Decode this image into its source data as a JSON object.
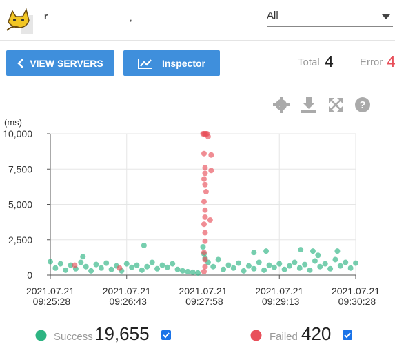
{
  "header": {
    "app_name": "r",
    "server_suffix": ",",
    "filter": "All"
  },
  "toolbar": {
    "buttons": [
      "VIEW SERVERS",
      "Inspector"
    ],
    "total_label": "Total",
    "total": 4,
    "error_label": "Error",
    "error": 4
  },
  "chart_data": {
    "type": "scatter",
    "y_label": "(ms)",
    "xlim": [
      "09:25:28",
      "09:30:28"
    ],
    "xticks": [
      {
        "value": "09:25:28",
        "label": "2021.07.21 09:25:28"
      },
      {
        "value": "09:26:43",
        "label": "2021.07.21 09:26:43"
      },
      {
        "value": "09:27:58",
        "label": "2021.07.21 09:27:58"
      },
      {
        "value": "09:29:13",
        "label": "2021.07.21 09:29:13"
      },
      {
        "value": "09:30:28",
        "label": "2021.07.21 09:30:28"
      }
    ],
    "ylim": [
      0,
      10000
    ],
    "yticks": [
      0,
      {
        "value": 2500,
        "label": "2,500"
      },
      {
        "value": 5000,
        "label": "5,000"
      },
      {
        "value": 7500,
        "label": "7,500"
      },
      {
        "value": 10000,
        "label": "10,000"
      }
    ],
    "grid": true,
    "series": [
      {
        "name": "Success",
        "color": "#2db482",
        "x": [
          "09:25:28",
          "09:25:33",
          "09:25:38",
          "09:25:43",
          "09:25:48",
          "09:25:53",
          "09:25:58",
          "09:26:03",
          "09:26:08",
          "09:26:13",
          "09:26:18",
          "09:26:23",
          "09:26:28",
          "09:26:33",
          "09:26:38",
          "09:26:43",
          "09:26:48",
          "09:26:53",
          "09:26:58",
          "09:27:03",
          "09:27:08",
          "09:27:13",
          "09:27:18",
          "09:27:23",
          "09:27:28",
          "09:27:33",
          "09:27:38",
          "09:27:43",
          "09:27:48",
          "09:27:53",
          "09:27:58",
          "09:28:03",
          "09:28:08",
          "09:28:13",
          "09:28:18",
          "09:28:23",
          "09:28:28",
          "09:28:33",
          "09:28:38",
          "09:28:43",
          "09:28:48",
          "09:28:53",
          "09:28:58",
          "09:29:03",
          "09:29:08",
          "09:29:13",
          "09:29:18",
          "09:29:23",
          "09:29:28",
          "09:29:33",
          "09:29:38",
          "09:29:43",
          "09:29:48",
          "09:29:53",
          "09:29:58",
          "09:30:03",
          "09:30:08",
          "09:30:13",
          "09:30:18",
          "09:30:23",
          "09:30:28",
          "09:26:00",
          "09:27:00",
          "09:28:48",
          "09:29:00",
          "09:29:34",
          "09:29:46",
          "09:29:51",
          "09:30:10",
          "09:27:59",
          "09:28:00"
        ],
        "values": [
          950,
          500,
          800,
          350,
          700,
          450,
          900,
          600,
          300,
          750,
          500,
          850,
          400,
          650,
          300,
          800,
          550,
          700,
          350,
          600,
          900,
          450,
          700,
          550,
          800,
          400,
          300,
          250,
          200,
          150,
          2000,
          900,
          600,
          1100,
          400,
          700,
          500,
          850,
          300,
          650,
          450,
          900,
          350,
          700,
          550,
          800,
          400,
          650,
          900,
          500,
          750,
          350,
          1000,
          600,
          800,
          450,
          1100,
          650,
          900,
          500,
          850,
          1300,
          2100,
          1600,
          1700,
          1800,
          1700,
          1400,
          1700,
          1500,
          1200
        ]
      },
      {
        "name": "Failed",
        "color": "#e8505b",
        "x": [
          "09:25:52",
          "09:26:36",
          "09:27:58",
          "09:27:59",
          "09:28:00",
          "09:28:01",
          "09:28:02",
          "09:28:03",
          "09:27:59",
          "09:28:00",
          "09:28:00",
          "09:27:59",
          "09:28:00",
          "09:28:01",
          "09:27:59",
          "09:28:00",
          "09:28:00",
          "09:27:59",
          "09:28:00",
          "09:28:00",
          "09:27:59",
          "09:28:00",
          "09:28:00",
          "09:27:59",
          "09:28:06",
          "09:28:06",
          "09:28:05"
        ],
        "values": [
          700,
          500,
          10000,
          10000,
          10000,
          10000,
          10000,
          9800,
          8600,
          7600,
          7200,
          6800,
          6400,
          5900,
          5200,
          4600,
          4100,
          3600,
          3000,
          2400,
          1600,
          1100,
          600,
          250,
          8500,
          7400,
          3900
        ]
      }
    ],
    "totals": [
      {
        "value": 19655,
        "label": "19,655"
      },
      420
    ]
  }
}
